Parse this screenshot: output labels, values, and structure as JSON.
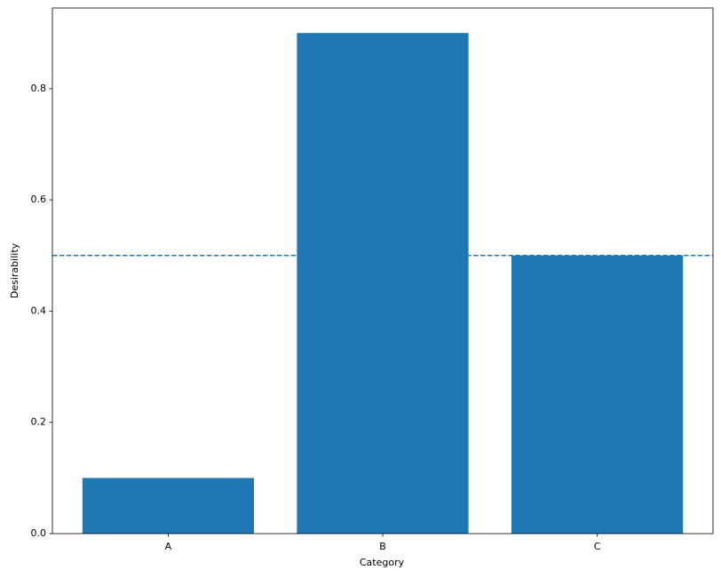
{
  "chart_data": {
    "type": "bar",
    "x_label": "Category",
    "y_label": "Desirability",
    "categories": [
      "A",
      "B",
      "C"
    ],
    "values": [
      0.1,
      0.9,
      0.5
    ],
    "color": "#1f77b4",
    "hline": 0.5,
    "ylim": [
      0,
      0.945
    ],
    "yticks": [
      {
        "value": 0,
        "label": "0.0"
      },
      0.2,
      0.4,
      0.6,
      0.8
    ]
  }
}
